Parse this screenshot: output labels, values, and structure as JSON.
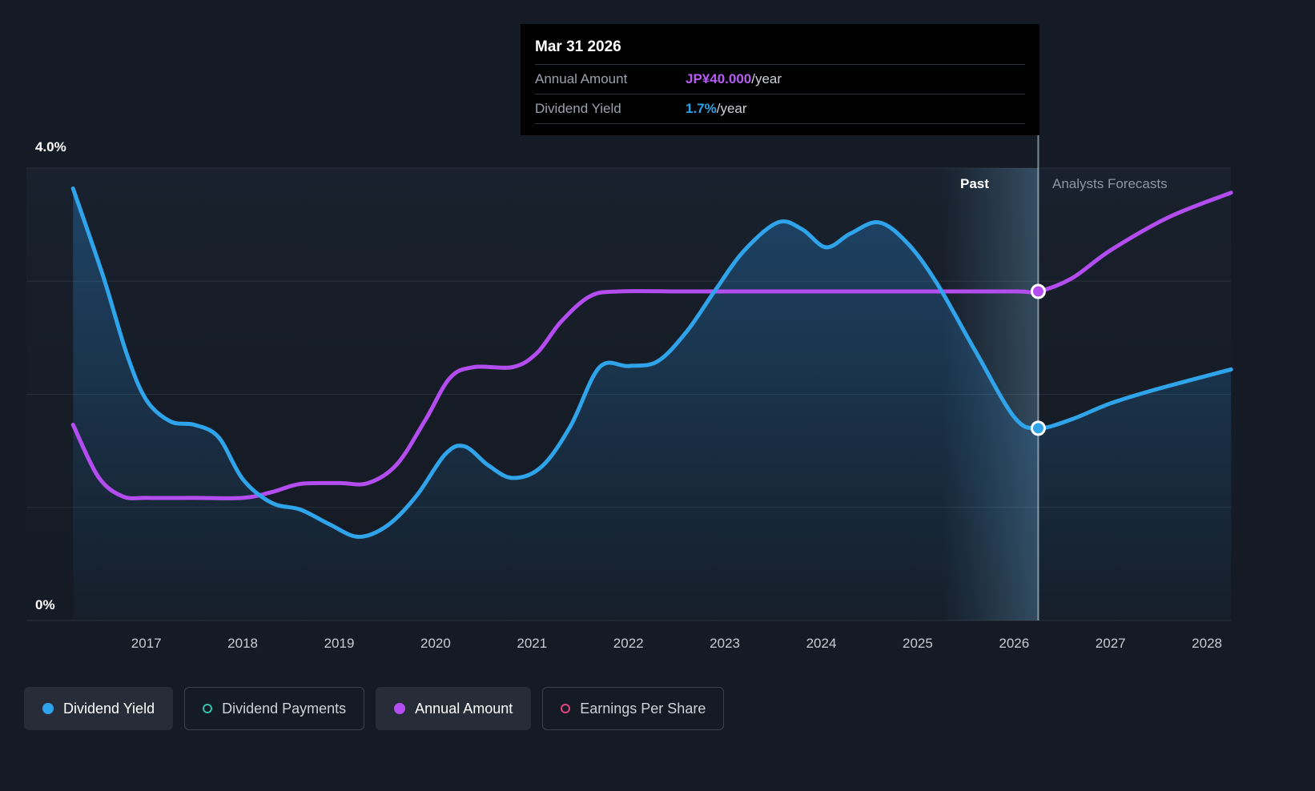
{
  "tooltip": {
    "title": "Mar 31 2026",
    "rows": [
      {
        "label": "Annual Amount",
        "value": "JP¥40.000",
        "suffix": "/year"
      },
      {
        "label": "Dividend Yield",
        "value": "1.7%",
        "suffix": "/year"
      }
    ]
  },
  "axis": {
    "y_top_label": "4.0%",
    "y_bottom_label": "0%"
  },
  "chart_data": {
    "type": "line",
    "x_ticks": [
      2017,
      2018,
      2019,
      2020,
      2021,
      2022,
      2023,
      2024,
      2025,
      2026,
      2027,
      2028
    ],
    "x_range": [
      2016.23,
      2028.28
    ],
    "y_axis_percent": {
      "range": [
        0,
        4.0
      ],
      "top_label": "4.0%",
      "bottom_label": "0%"
    },
    "y_gridline_percents": [
      0,
      1,
      2,
      3,
      4
    ],
    "divider_year": 2026.25,
    "past_band": {
      "from": 2025.25,
      "to": 2026.25
    },
    "past_label": "Past",
    "forecast_label": "Analysts Forecasts",
    "series": [
      {
        "name": "Dividend Yield",
        "unit": "percent",
        "color": "#2fa4ea",
        "points": [
          [
            2016.24,
            3.82
          ],
          [
            2016.55,
            3.05
          ],
          [
            2016.8,
            2.35
          ],
          [
            2017.0,
            1.95
          ],
          [
            2017.25,
            1.76
          ],
          [
            2017.5,
            1.73
          ],
          [
            2017.75,
            1.62
          ],
          [
            2018.0,
            1.25
          ],
          [
            2018.3,
            1.04
          ],
          [
            2018.6,
            0.98
          ],
          [
            2018.9,
            0.85
          ],
          [
            2019.2,
            0.74
          ],
          [
            2019.5,
            0.84
          ],
          [
            2019.8,
            1.1
          ],
          [
            2020.1,
            1.47
          ],
          [
            2020.3,
            1.54
          ],
          [
            2020.55,
            1.37
          ],
          [
            2020.8,
            1.26
          ],
          [
            2021.1,
            1.36
          ],
          [
            2021.4,
            1.72
          ],
          [
            2021.7,
            2.24
          ],
          [
            2022.0,
            2.25
          ],
          [
            2022.3,
            2.29
          ],
          [
            2022.6,
            2.55
          ],
          [
            2022.9,
            2.92
          ],
          [
            2023.2,
            3.27
          ],
          [
            2023.55,
            3.52
          ],
          [
            2023.8,
            3.46
          ],
          [
            2024.05,
            3.3
          ],
          [
            2024.3,
            3.42
          ],
          [
            2024.6,
            3.52
          ],
          [
            2024.9,
            3.33
          ],
          [
            2025.2,
            2.98
          ],
          [
            2025.6,
            2.38
          ],
          [
            2026.0,
            1.8
          ],
          [
            2026.25,
            1.7
          ],
          [
            2026.6,
            1.78
          ],
          [
            2027.0,
            1.92
          ],
          [
            2027.5,
            2.05
          ],
          [
            2028.25,
            2.22
          ]
        ]
      },
      {
        "name": "Annual Amount",
        "unit": "jpy",
        "color": "#b44df0",
        "points": [
          [
            2016.24,
            23.8
          ],
          [
            2016.5,
            17.5
          ],
          [
            2016.75,
            15.1
          ],
          [
            2017.0,
            14.9
          ],
          [
            2017.5,
            14.9
          ],
          [
            2018.0,
            14.9
          ],
          [
            2018.3,
            15.6
          ],
          [
            2018.6,
            16.6
          ],
          [
            2019.0,
            16.7
          ],
          [
            2019.3,
            16.7
          ],
          [
            2019.6,
            19.0
          ],
          [
            2019.9,
            24.5
          ],
          [
            2020.15,
            29.5
          ],
          [
            2020.4,
            30.8
          ],
          [
            2020.8,
            30.8
          ],
          [
            2021.05,
            32.5
          ],
          [
            2021.3,
            36.3
          ],
          [
            2021.6,
            39.4
          ],
          [
            2021.9,
            40.0
          ],
          [
            2022.5,
            40.0
          ],
          [
            2023.0,
            40.0
          ],
          [
            2024.0,
            40.0
          ],
          [
            2025.0,
            40.0
          ],
          [
            2026.0,
            40.0
          ],
          [
            2026.25,
            40.0
          ],
          [
            2026.6,
            41.6
          ],
          [
            2027.0,
            45.0
          ],
          [
            2027.6,
            49.0
          ],
          [
            2028.25,
            52.0
          ]
        ]
      }
    ],
    "markers": [
      {
        "series": "Annual Amount",
        "year": 2026.25,
        "value": 40.0,
        "display": "JP¥40.000/year"
      },
      {
        "series": "Dividend Yield",
        "year": 2026.25,
        "value": 1.7,
        "display": "1.7%/year"
      }
    ]
  },
  "legend": {
    "items": [
      {
        "label": "Dividend Yield",
        "color": "#2fa4ea",
        "style": "filled",
        "active": true
      },
      {
        "label": "Dividend Payments",
        "color": "#35bfad",
        "style": "outline",
        "active": false
      },
      {
        "label": "Annual Amount",
        "color": "#b44df0",
        "style": "filled",
        "active": true
      },
      {
        "label": "Earnings Per Share",
        "color": "#e0447f",
        "style": "outline",
        "active": false
      }
    ]
  },
  "colors": {
    "background": "#151b24",
    "grid": "#2a313d",
    "accent_blue": "#2fa4ea",
    "accent_purple": "#b44df0",
    "tooltip_background": "#000000",
    "past_band_highlight": "#7fc0ea"
  }
}
